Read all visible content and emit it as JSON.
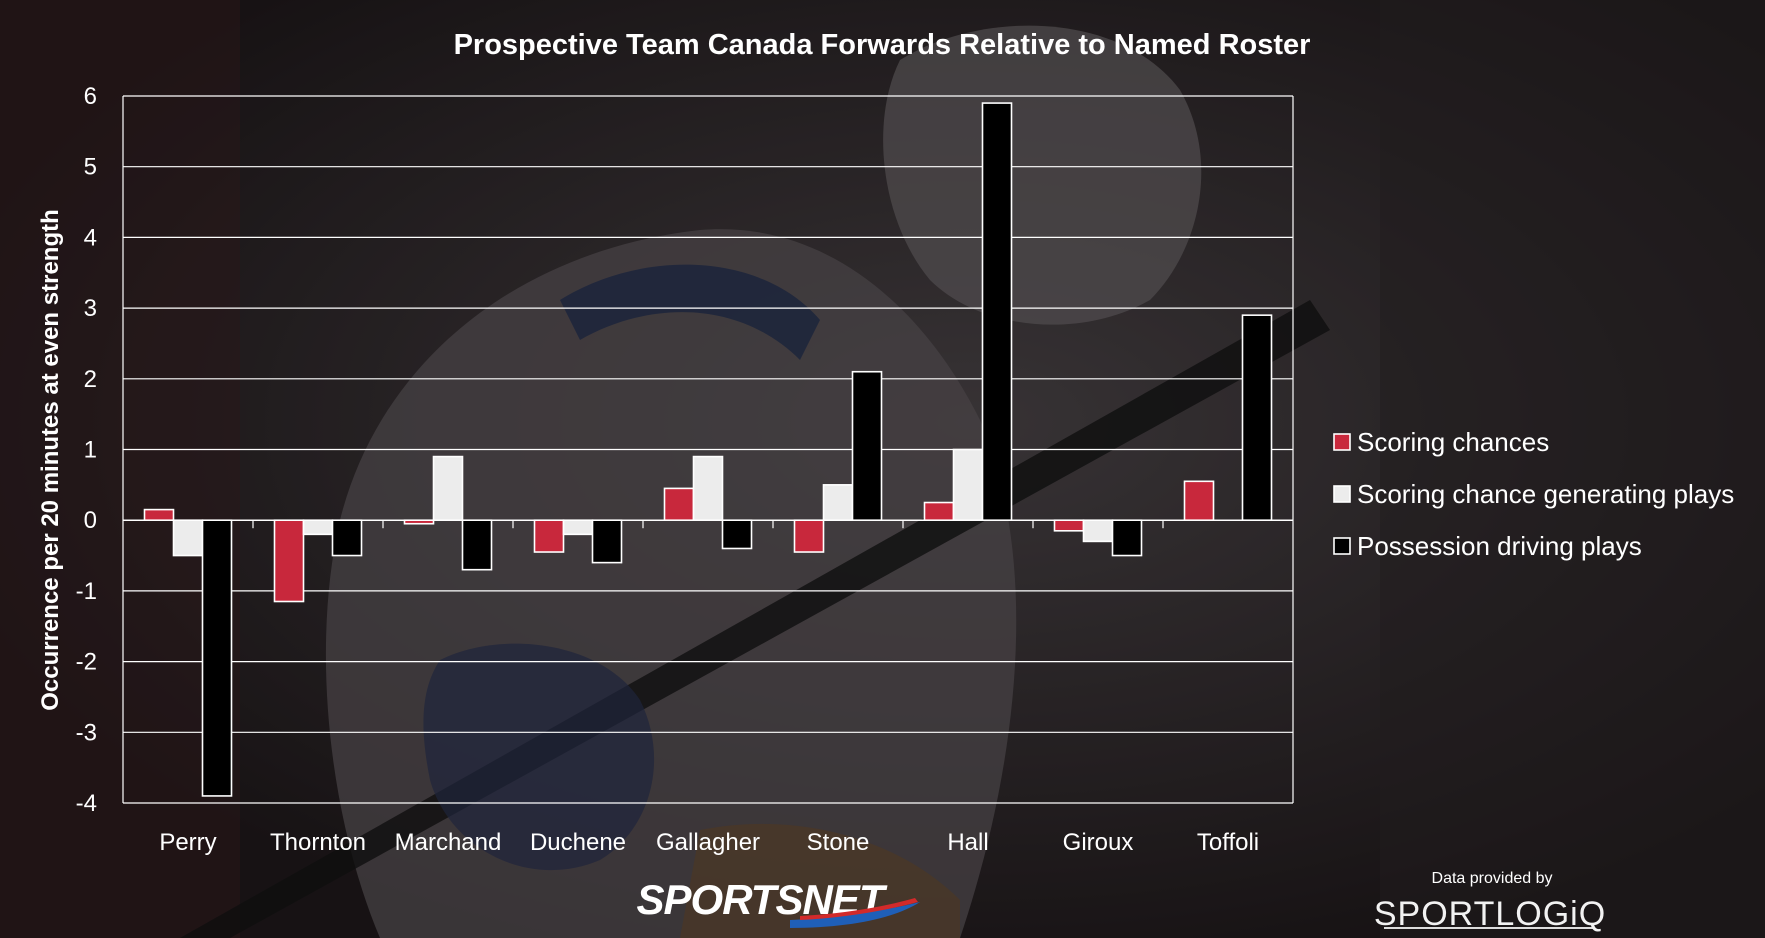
{
  "chart_data": {
    "type": "bar",
    "title": "Prospective Team Canada Forwards Relative to Named Roster",
    "ylabel": "Occurrence per 20 minutes at even strength",
    "xlabel": "",
    "ylim": [
      -4,
      6
    ],
    "yticks": [
      -4,
      -3,
      -2,
      -1,
      0,
      1,
      2,
      3,
      4,
      5,
      6
    ],
    "grid": true,
    "legend_position": "right",
    "categories": [
      "Perry",
      "Thornton",
      "Marchand",
      "Duchene",
      "Gallagher",
      "Stone",
      "Hall",
      "Giroux",
      "Toffoli"
    ],
    "series": [
      {
        "name": "Scoring chances",
        "color": "#c8283c",
        "values": [
          0.15,
          -1.15,
          -0.05,
          -0.45,
          0.45,
          -0.45,
          0.25,
          -0.15,
          0.55
        ]
      },
      {
        "name": "Scoring chance generating plays",
        "color": "#ececec",
        "values": [
          -0.5,
          -0.2,
          0.9,
          -0.2,
          0.9,
          0.5,
          1.0,
          -0.3,
          0.0
        ]
      },
      {
        "name": "Possession driving plays",
        "color": "#000000",
        "values": [
          -3.9,
          -0.5,
          -0.7,
          -0.6,
          -0.4,
          2.1,
          5.9,
          -0.5,
          2.9
        ]
      }
    ]
  },
  "branding": {
    "broadcaster": "SPORTSNET",
    "credit_line": "Data provided by",
    "provider": "SPORTLOGiQ"
  }
}
